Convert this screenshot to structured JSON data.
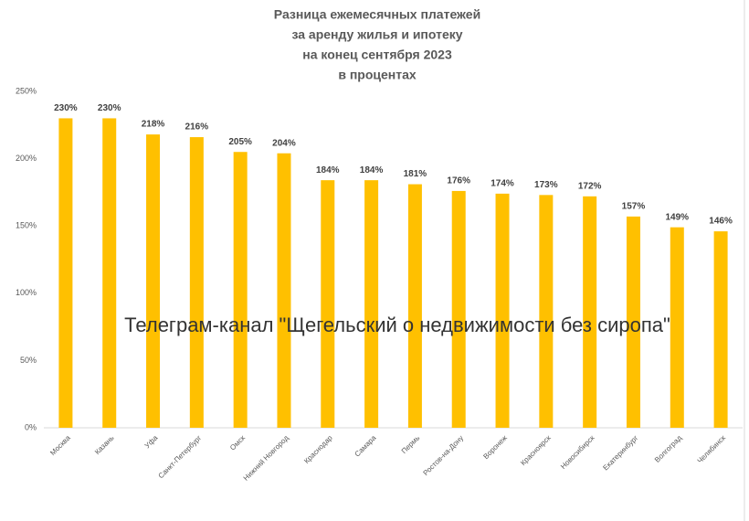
{
  "chart_data": {
    "type": "bar",
    "title": [
      "Разница ежемесячных платежей",
      "за аренду жилья и ипотеку",
      "на конец сентября 2023",
      "в процентах"
    ],
    "annotation": "Телеграм-канал \"Щегельский о недвижимости без сиропа\"",
    "categories": [
      "Москва",
      "Казань",
      "Уфа",
      "Санкт-Петербург",
      "Омск",
      "Нижний Новгород",
      "Краснодар",
      "Самара",
      "Пермь",
      "Ростов-на-Дону",
      "Воронеж",
      "Красноярск",
      "Новосибирск",
      "Екатеринбург",
      "Волгоград",
      "Челябинск"
    ],
    "values": [
      230,
      230,
      218,
      216,
      205,
      204,
      184,
      184,
      181,
      176,
      174,
      173,
      172,
      157,
      149,
      146
    ],
    "value_labels": [
      "230%",
      "230%",
      "218%",
      "216%",
      "205%",
      "204%",
      "184%",
      "184%",
      "181%",
      "176%",
      "174%",
      "173%",
      "172%",
      "157%",
      "149%",
      "146%"
    ],
    "color": "#ffc000",
    "ylim": [
      0,
      250
    ],
    "yticks": [
      {
        "value": 0,
        "label": "0%"
      },
      {
        "value": 50,
        "label": "50%"
      },
      {
        "value": 100,
        "label": "100%"
      },
      {
        "value": 150,
        "label": "150%"
      },
      {
        "value": 200,
        "label": "200%"
      },
      {
        "value": 250,
        "label": "250%"
      }
    ],
    "grid": false
  }
}
